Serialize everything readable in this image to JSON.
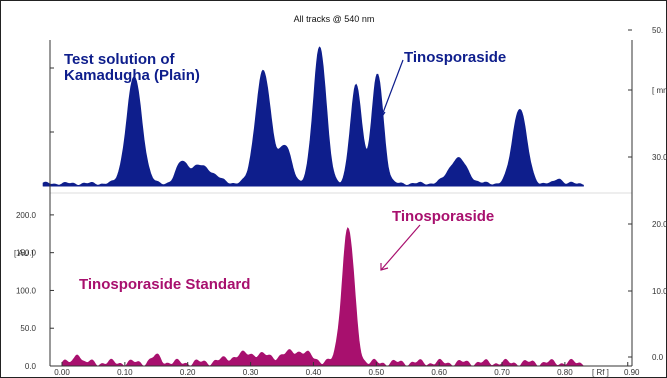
{
  "chart_data": {
    "type": "area",
    "title": "All tracks @ 540 nm",
    "xlabel": "[ Rf ]",
    "xlim": [
      -0.05,
      0.9
    ],
    "x_ticks": [
      "0.00",
      "0.10",
      "0.20",
      "0.30",
      "0.40",
      "0.50",
      "0.60",
      "0.70",
      "0.80",
      "0.90"
    ],
    "ylabel": "[ AU ]",
    "y_ticks": [
      "0.0",
      "50.0",
      "100.0",
      "150.0",
      "200.0"
    ],
    "right_ticks": [
      "0.0",
      "10.0",
      "20.0",
      "30.0",
      "[ mm ]",
      "50."
    ],
    "colors": {
      "test": "#0e1e8c",
      "standard": "#a8106e",
      "axis": "#333333"
    },
    "series": [
      {
        "name": "Test solution of Kamadugha (Plain)",
        "label_lines": [
          "Test solution of",
          "Kamadugha (Plain)"
        ],
        "baseline": 250,
        "rf_range": [
          -0.03,
          0.83
        ],
        "peaks": [
          {
            "rf": 0.115,
            "height": 190,
            "width": 0.012
          },
          {
            "rf": 0.19,
            "height": 30,
            "width": 0.008
          },
          {
            "rf": 0.22,
            "height": 32,
            "width": 0.02
          },
          {
            "rf": 0.32,
            "height": 200,
            "width": 0.012
          },
          {
            "rf": 0.355,
            "height": 65,
            "width": 0.01
          },
          {
            "rf": 0.41,
            "height": 245,
            "width": 0.01
          },
          {
            "rf": 0.468,
            "height": 175,
            "width": 0.009
          },
          {
            "rf": 0.502,
            "height": 195,
            "width": 0.009
          },
          {
            "rf": 0.63,
            "height": 45,
            "width": 0.014
          },
          {
            "rf": 0.728,
            "height": 135,
            "width": 0.011
          },
          {
            "rf": 0.79,
            "height": 10,
            "width": 0.005
          }
        ]
      },
      {
        "name": "Tinosporaside Standard",
        "baseline": 48,
        "rf_range": [
          0.0,
          0.83
        ],
        "peaks": [
          {
            "rf": 0.025,
            "height": 15,
            "width": 0.004
          },
          {
            "rf": 0.15,
            "height": 8,
            "width": 0.008
          },
          {
            "rf": 0.3,
            "height": 12,
            "width": 0.03
          },
          {
            "rf": 0.375,
            "height": 15,
            "width": 0.02
          },
          {
            "rf": 0.455,
            "height": 178,
            "width": 0.0095
          }
        ]
      }
    ],
    "annotations": [
      {
        "text": "Tinosporaside",
        "series": 0
      },
      {
        "text": "Tinosporaside",
        "series": 1
      }
    ]
  }
}
